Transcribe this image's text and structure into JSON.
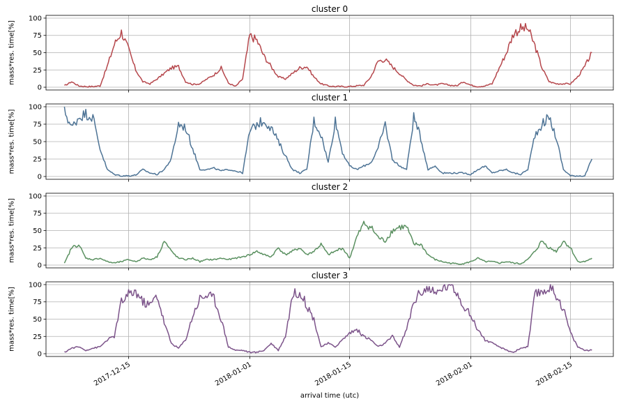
{
  "figure": {
    "xlabel": "arrival time (utc)",
    "x_tick_labels": [
      "2017-12-15",
      "2018-01-01",
      "2018-01-15",
      "2018-02-01",
      "2018-02-15"
    ]
  },
  "chart_data": [
    {
      "type": "line",
      "title": "cluster 0",
      "ylabel": "mass*res. time[%]",
      "xlabel": "",
      "ylim": [
        -4,
        104
      ],
      "y_ticks": [
        0,
        25,
        50,
        75,
        100
      ],
      "x_ticks": [
        "2017-12-15",
        "2018-01-01",
        "2018-01-15",
        "2018-02-01",
        "2018-02-15"
      ],
      "grid": true,
      "series": [
        {
          "color": "#b5464b",
          "x": [
            "2017-12-06",
            "2017-12-07",
            "2017-12-08",
            "2017-12-09",
            "2017-12-10",
            "2017-12-11",
            "2017-12-12",
            "2017-12-13",
            "2017-12-14",
            "2017-12-15",
            "2017-12-16",
            "2017-12-17",
            "2017-12-18",
            "2017-12-19",
            "2017-12-20",
            "2017-12-21",
            "2017-12-22",
            "2017-12-23",
            "2017-12-24",
            "2017-12-25",
            "2017-12-26",
            "2017-12-27",
            "2017-12-28",
            "2017-12-29",
            "2017-12-30",
            "2017-12-31",
            "2018-01-01",
            "2018-01-02",
            "2018-01-03",
            "2018-01-04",
            "2018-01-05",
            "2018-01-06",
            "2018-01-07",
            "2018-01-08",
            "2018-01-09",
            "2018-01-10",
            "2018-01-11",
            "2018-01-12",
            "2018-01-13",
            "2018-01-14",
            "2018-01-15",
            "2018-01-16",
            "2018-01-17",
            "2018-01-18",
            "2018-01-19",
            "2018-01-20",
            "2018-01-21",
            "2018-01-22",
            "2018-01-23",
            "2018-01-24",
            "2018-01-25",
            "2018-01-26",
            "2018-01-27",
            "2018-01-28",
            "2018-01-29",
            "2018-01-30",
            "2018-01-31",
            "2018-02-01",
            "2018-02-02",
            "2018-02-03",
            "2018-02-04",
            "2018-02-05",
            "2018-02-06",
            "2018-02-07",
            "2018-02-08",
            "2018-02-09",
            "2018-02-10",
            "2018-02-11",
            "2018-02-12",
            "2018-02-13",
            "2018-02-14",
            "2018-02-15",
            "2018-02-16",
            "2018-02-17",
            "2018-02-18"
          ],
          "values": [
            2,
            8,
            2,
            1,
            1,
            2,
            30,
            62,
            80,
            55,
            25,
            8,
            5,
            12,
            20,
            28,
            30,
            8,
            4,
            5,
            12,
            18,
            28,
            6,
            1,
            12,
            75,
            68,
            45,
            30,
            15,
            12,
            20,
            28,
            30,
            15,
            5,
            2,
            1,
            1,
            1,
            2,
            3,
            15,
            38,
            40,
            30,
            20,
            10,
            3,
            2,
            5,
            3,
            5,
            3,
            2,
            8,
            3,
            1,
            2,
            5,
            28,
            50,
            78,
            85,
            85,
            60,
            28,
            8,
            5,
            5,
            5,
            15,
            30,
            50
          ]
        }
      ]
    },
    {
      "type": "line",
      "title": "cluster 1",
      "ylabel": "mass*res. time[%]",
      "xlabel": "",
      "ylim": [
        -4,
        104
      ],
      "y_ticks": [
        0,
        25,
        50,
        75,
        100
      ],
      "x_ticks": [
        "2017-12-15",
        "2018-01-01",
        "2018-01-15",
        "2018-02-01",
        "2018-02-15"
      ],
      "grid": true,
      "series": [
        {
          "color": "#4d7395",
          "x": [
            "2017-12-06",
            "2017-12-07",
            "2017-12-08",
            "2017-12-09",
            "2017-12-10",
            "2017-12-11",
            "2017-12-12",
            "2017-12-13",
            "2017-12-14",
            "2017-12-15",
            "2017-12-16",
            "2017-12-17",
            "2017-12-18",
            "2017-12-19",
            "2017-12-20",
            "2017-12-21",
            "2017-12-22",
            "2017-12-23",
            "2017-12-24",
            "2017-12-25",
            "2017-12-26",
            "2017-12-27",
            "2017-12-28",
            "2017-12-29",
            "2017-12-30",
            "2017-12-31",
            "2018-01-01",
            "2018-01-02",
            "2018-01-03",
            "2018-01-04",
            "2018-01-05",
            "2018-01-06",
            "2018-01-07",
            "2018-01-08",
            "2018-01-09",
            "2018-01-10",
            "2018-01-11",
            "2018-01-12",
            "2018-01-13",
            "2018-01-14",
            "2018-01-15",
            "2018-01-16",
            "2018-01-17",
            "2018-01-18",
            "2018-01-19",
            "2018-01-20",
            "2018-01-21",
            "2018-01-22",
            "2018-01-23",
            "2018-01-24",
            "2018-01-25",
            "2018-01-26",
            "2018-01-27",
            "2018-01-28",
            "2018-01-29",
            "2018-01-30",
            "2018-01-31",
            "2018-02-01",
            "2018-02-02",
            "2018-02-03",
            "2018-02-04",
            "2018-02-05",
            "2018-02-06",
            "2018-02-07",
            "2018-02-08",
            "2018-02-09",
            "2018-02-10",
            "2018-02-11",
            "2018-02-12",
            "2018-02-13",
            "2018-02-14",
            "2018-02-15",
            "2018-02-16",
            "2018-02-17",
            "2018-02-18"
          ],
          "values": [
            95,
            70,
            85,
            90,
            85,
            40,
            10,
            3,
            1,
            1,
            2,
            10,
            5,
            3,
            10,
            25,
            75,
            70,
            40,
            10,
            10,
            12,
            8,
            10,
            8,
            5,
            65,
            75,
            80,
            70,
            50,
            30,
            10,
            5,
            10,
            80,
            60,
            20,
            80,
            35,
            15,
            10,
            15,
            20,
            40,
            75,
            25,
            15,
            10,
            85,
            55,
            10,
            15,
            5,
            5,
            5,
            5,
            3,
            10,
            15,
            5,
            8,
            10,
            5,
            3,
            10,
            60,
            75,
            85,
            55,
            10,
            1,
            1,
            1,
            25
          ]
        }
      ]
    },
    {
      "type": "line",
      "title": "cluster 2",
      "ylabel": "mass*res. time[%]",
      "xlabel": "",
      "ylim": [
        -4,
        104
      ],
      "y_ticks": [
        0,
        25,
        50,
        75,
        100
      ],
      "x_ticks": [
        "2017-12-15",
        "2018-01-01",
        "2018-01-15",
        "2018-02-01",
        "2018-02-15"
      ],
      "grid": true,
      "series": [
        {
          "color": "#5a9060",
          "x": [
            "2017-12-06",
            "2017-12-07",
            "2017-12-08",
            "2017-12-09",
            "2017-12-10",
            "2017-12-11",
            "2017-12-12",
            "2017-12-13",
            "2017-12-14",
            "2017-12-15",
            "2017-12-16",
            "2017-12-17",
            "2017-12-18",
            "2017-12-19",
            "2017-12-20",
            "2017-12-21",
            "2017-12-22",
            "2017-12-23",
            "2017-12-24",
            "2017-12-25",
            "2017-12-26",
            "2017-12-27",
            "2017-12-28",
            "2017-12-29",
            "2017-12-30",
            "2017-12-31",
            "2018-01-01",
            "2018-01-02",
            "2018-01-03",
            "2018-01-04",
            "2018-01-05",
            "2018-01-06",
            "2018-01-07",
            "2018-01-08",
            "2018-01-09",
            "2018-01-10",
            "2018-01-11",
            "2018-01-12",
            "2018-01-13",
            "2018-01-14",
            "2018-01-15",
            "2018-01-16",
            "2018-01-17",
            "2018-01-18",
            "2018-01-19",
            "2018-01-20",
            "2018-01-21",
            "2018-01-22",
            "2018-01-23",
            "2018-01-24",
            "2018-01-25",
            "2018-01-26",
            "2018-01-27",
            "2018-01-28",
            "2018-01-29",
            "2018-01-30",
            "2018-01-31",
            "2018-02-01",
            "2018-02-02",
            "2018-02-03",
            "2018-02-04",
            "2018-02-05",
            "2018-02-06",
            "2018-02-07",
            "2018-02-08",
            "2018-02-09",
            "2018-02-10",
            "2018-02-11",
            "2018-02-12",
            "2018-02-13",
            "2018-02-14",
            "2018-02-15",
            "2018-02-16",
            "2018-02-17",
            "2018-02-18"
          ],
          "values": [
            2,
            25,
            30,
            10,
            8,
            10,
            5,
            3,
            5,
            8,
            5,
            10,
            8,
            12,
            35,
            20,
            10,
            8,
            10,
            5,
            8,
            8,
            10,
            8,
            10,
            12,
            15,
            20,
            15,
            12,
            25,
            15,
            20,
            25,
            15,
            20,
            30,
            15,
            20,
            25,
            10,
            40,
            60,
            55,
            40,
            35,
            50,
            55,
            55,
            30,
            30,
            15,
            8,
            5,
            3,
            2,
            2,
            5,
            10,
            5,
            5,
            3,
            5,
            3,
            2,
            8,
            20,
            35,
            25,
            20,
            35,
            25,
            5,
            5,
            10
          ]
        }
      ]
    },
    {
      "type": "line",
      "title": "cluster 3",
      "ylabel": "mass*res. time[%]",
      "xlabel": "arrival time (utc)",
      "ylim": [
        -4,
        104
      ],
      "y_ticks": [
        0,
        25,
        50,
        75,
        100
      ],
      "x_ticks": [
        "2017-12-15",
        "2018-01-01",
        "2018-01-15",
        "2018-02-01",
        "2018-02-15"
      ],
      "grid": true,
      "series": [
        {
          "color": "#7b5289",
          "x": [
            "2017-12-06",
            "2017-12-07",
            "2017-12-08",
            "2017-12-09",
            "2017-12-10",
            "2017-12-11",
            "2017-12-12",
            "2017-12-13",
            "2017-12-14",
            "2017-12-15",
            "2017-12-16",
            "2017-12-17",
            "2017-12-18",
            "2017-12-19",
            "2017-12-20",
            "2017-12-21",
            "2017-12-22",
            "2017-12-23",
            "2017-12-24",
            "2017-12-25",
            "2017-12-26",
            "2017-12-27",
            "2017-12-28",
            "2017-12-29",
            "2017-12-30",
            "2017-12-31",
            "2018-01-01",
            "2018-01-02",
            "2018-01-03",
            "2018-01-04",
            "2018-01-05",
            "2018-01-06",
            "2018-01-07",
            "2018-01-08",
            "2018-01-09",
            "2018-01-10",
            "2018-01-11",
            "2018-01-12",
            "2018-01-13",
            "2018-01-14",
            "2018-01-15",
            "2018-01-16",
            "2018-01-17",
            "2018-01-18",
            "2018-01-19",
            "2018-01-20",
            "2018-01-21",
            "2018-01-22",
            "2018-01-23",
            "2018-01-24",
            "2018-01-25",
            "2018-01-26",
            "2018-01-27",
            "2018-01-28",
            "2018-01-29",
            "2018-01-30",
            "2018-01-31",
            "2018-02-01",
            "2018-02-02",
            "2018-02-03",
            "2018-02-04",
            "2018-02-05",
            "2018-02-06",
            "2018-02-07",
            "2018-02-08",
            "2018-02-09",
            "2018-02-10",
            "2018-02-11",
            "2018-02-12",
            "2018-02-13",
            "2018-02-14",
            "2018-02-15",
            "2018-02-16",
            "2018-02-17",
            "2018-02-18"
          ],
          "values": [
            2,
            8,
            10,
            5,
            8,
            10,
            20,
            25,
            75,
            85,
            90,
            75,
            70,
            85,
            45,
            15,
            8,
            20,
            55,
            80,
            85,
            80,
            50,
            10,
            5,
            5,
            2,
            2,
            5,
            15,
            5,
            25,
            85,
            90,
            70,
            50,
            10,
            15,
            10,
            20,
            30,
            35,
            25,
            20,
            10,
            15,
            25,
            10,
            35,
            75,
            90,
            95,
            85,
            95,
            100,
            90,
            70,
            55,
            35,
            20,
            15,
            10,
            5,
            2,
            8,
            10,
            85,
            90,
            95,
            85,
            65,
            30,
            10,
            5,
            5
          ]
        }
      ]
    }
  ]
}
